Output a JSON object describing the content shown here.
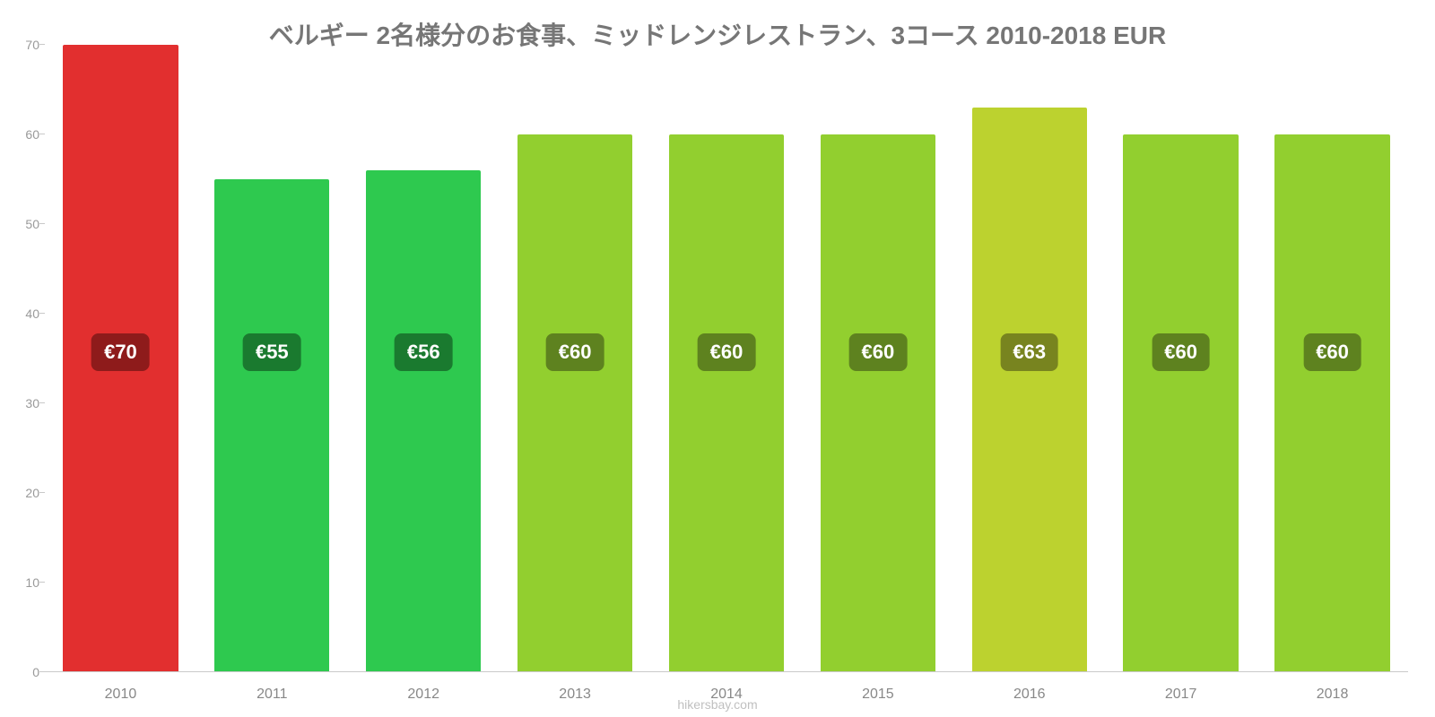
{
  "chart": {
    "type": "bar",
    "title": "ベルギー 2名様分のお食事、ミッドレンジレストラン、3コース 2010-2018 EUR",
    "title_color": "#767676",
    "title_fontsize": 28,
    "background_color": "#ffffff",
    "source": "hikersbay.com",
    "source_color": "#c0c0c0",
    "y": {
      "min": 0,
      "max": 70,
      "ticks": [
        0,
        10,
        20,
        30,
        40,
        50,
        60,
        70
      ],
      "tick_color": "#999999",
      "tick_fontsize": 14,
      "baseline_color": "#c9c9c9"
    },
    "x": {
      "tick_color": "#888888",
      "tick_fontsize": 16
    },
    "bars": [
      {
        "category": "2010",
        "value": 70,
        "label": "€70",
        "color": "#e22f2f",
        "label_bg": "#8e1b1b"
      },
      {
        "category": "2011",
        "value": 55,
        "label": "€55",
        "color": "#2ec94f",
        "label_bg": "#1a7a2f"
      },
      {
        "category": "2012",
        "value": 56,
        "label": "€56",
        "color": "#2ec94f",
        "label_bg": "#1a7a2f"
      },
      {
        "category": "2013",
        "value": 60,
        "label": "€60",
        "color": "#92cf2f",
        "label_bg": "#5e821f"
      },
      {
        "category": "2014",
        "value": 60,
        "label": "€60",
        "color": "#92cf2f",
        "label_bg": "#5e821f"
      },
      {
        "category": "2015",
        "value": 60,
        "label": "€60",
        "color": "#92cf2f",
        "label_bg": "#5e821f"
      },
      {
        "category": "2016",
        "value": 63,
        "label": "€63",
        "color": "#bcd22f",
        "label_bg": "#78841f"
      },
      {
        "category": "2017",
        "value": 60,
        "label": "€60",
        "color": "#92cf2f",
        "label_bg": "#5e821f"
      },
      {
        "category": "2018",
        "value": 60,
        "label": "€60",
        "color": "#92cf2f",
        "label_bg": "#5e821f"
      }
    ],
    "bar_width_ratio": 0.76,
    "bar_border_radius": 2
  }
}
